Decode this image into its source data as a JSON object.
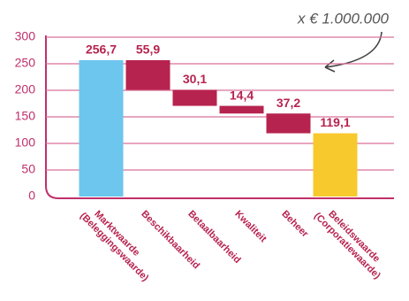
{
  "chart_data": {
    "type": "waterfall",
    "annotation": "x € 1.000.000",
    "categories": [
      "Marktwaarde\n(Beleggingswaarde)",
      "Beschikbaarheid",
      "Betaalbaarheid",
      "Kwaliteit",
      "Beheer",
      "Beleidswaarde\n(Corporatiewaarde)"
    ],
    "values": [
      256.7,
      55.9,
      30.1,
      14.4,
      37.2,
      119.1
    ],
    "value_labels": [
      "256,7",
      "55,9",
      "30,1",
      "14,4",
      "37,2",
      "119,1"
    ],
    "measures": [
      "total",
      "decrease",
      "decrease",
      "decrease",
      "decrease",
      "total"
    ],
    "colors": [
      "#6cc6ee",
      "#b7234f",
      "#b7234f",
      "#b7234f",
      "#b7234f",
      "#f8c92c"
    ],
    "ylim": [
      0,
      300
    ],
    "yticks": [
      0,
      50,
      100,
      150,
      200,
      250,
      300
    ],
    "grid": true
  }
}
